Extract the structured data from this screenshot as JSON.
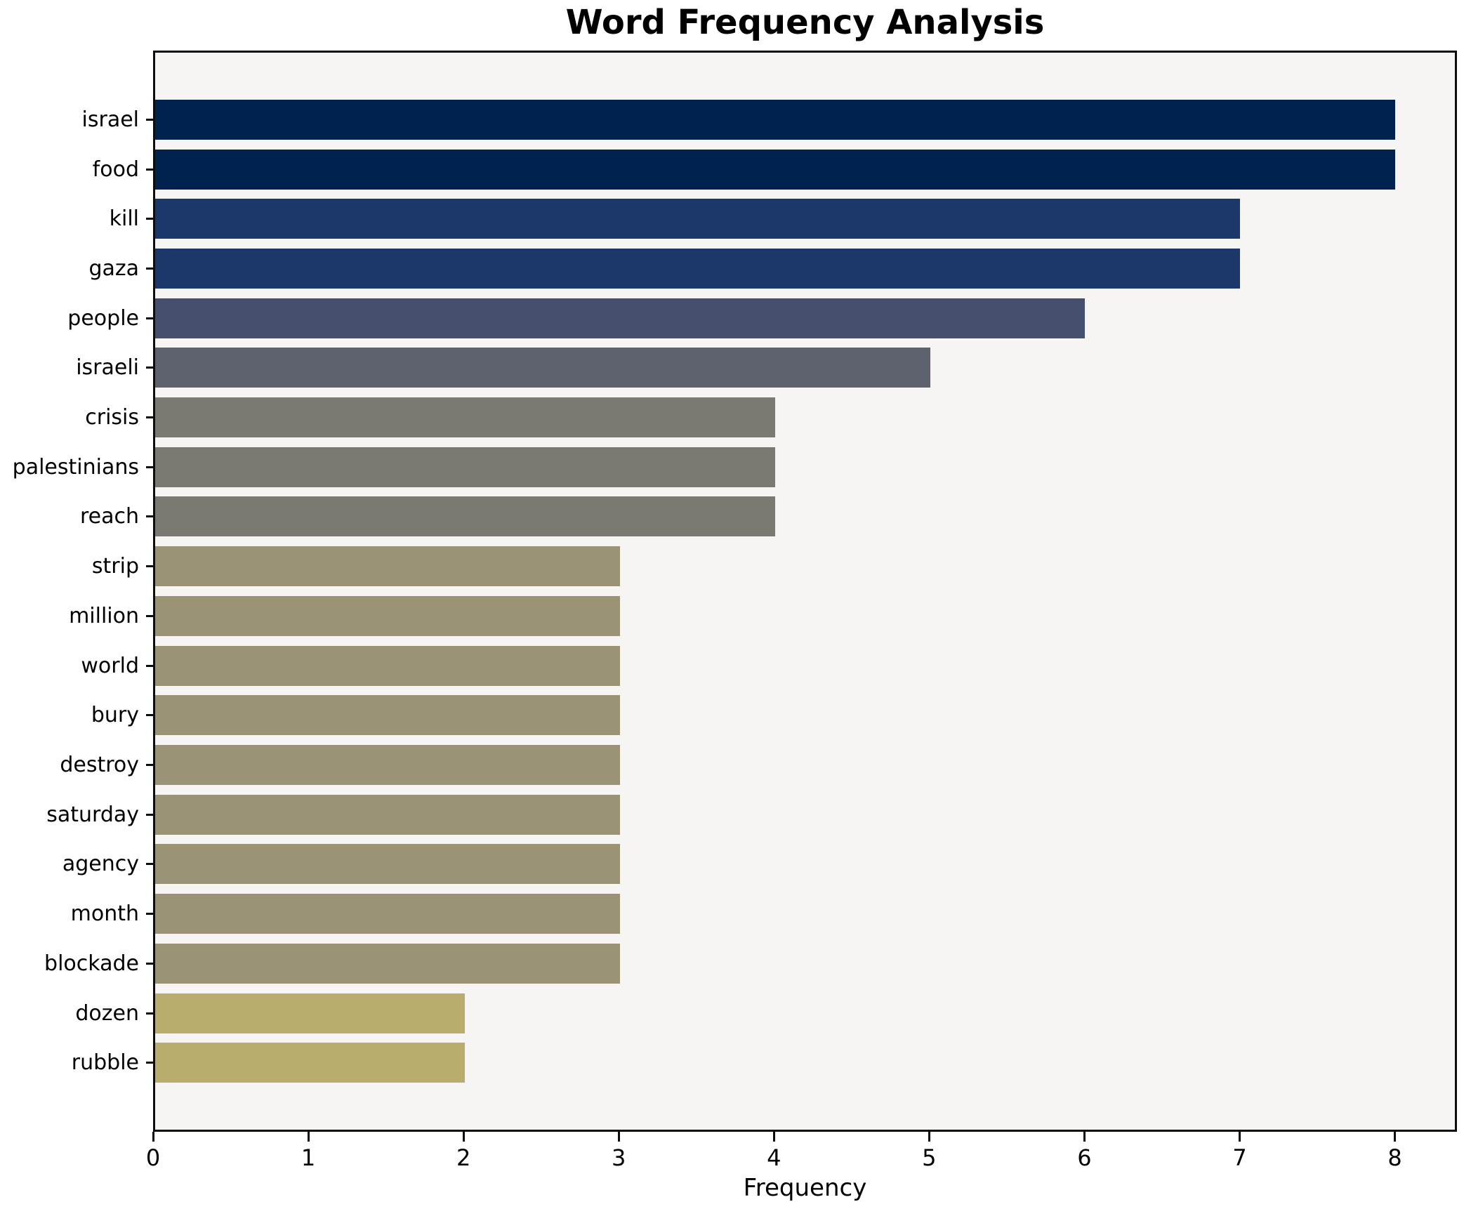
{
  "title": "Word Frequency Analysis",
  "axes": {
    "xlabel": "Frequency"
  },
  "chart_data": {
    "type": "bar",
    "orientation": "horizontal",
    "title": "Word Frequency Analysis",
    "xlabel": "Frequency",
    "ylabel": "",
    "categories": [
      "israel",
      "food",
      "kill",
      "gaza",
      "people",
      "israeli",
      "crisis",
      "palestinians",
      "reach",
      "strip",
      "million",
      "world",
      "bury",
      "destroy",
      "saturday",
      "agency",
      "month",
      "blockade",
      "dozen",
      "rubble"
    ],
    "values": [
      8,
      8,
      7,
      7,
      6,
      5,
      4,
      4,
      4,
      3,
      3,
      3,
      3,
      3,
      3,
      3,
      3,
      3,
      2,
      2
    ],
    "bar_colors": [
      "#00224e",
      "#00224e",
      "#1c386b",
      "#1c386b",
      "#464f6d",
      "#5d626e",
      "#7a7a72",
      "#7a7a72",
      "#7a7a72",
      "#9a9375",
      "#9a9375",
      "#9a9375",
      "#9a9375",
      "#9a9375",
      "#9a9375",
      "#9a9375",
      "#9a9375",
      "#9a9375",
      "#b9ad6e",
      "#b9ad6e"
    ],
    "value_color_map": {
      "8": "#00224e",
      "7": "#1c386b",
      "6": "#464f6d",
      "5": "#5d626e",
      "4": "#7a7a72",
      "3": "#9a9375",
      "2": "#b9ad6e"
    },
    "xlim": [
      0,
      8.4
    ],
    "xticks": [
      0,
      1,
      2,
      3,
      4,
      5,
      6,
      7,
      8
    ],
    "grid": false,
    "legend": null,
    "plot_background": "#f6f5f4",
    "figure_background": "#ffffff",
    "spine_color": "#0d0d0d"
  }
}
